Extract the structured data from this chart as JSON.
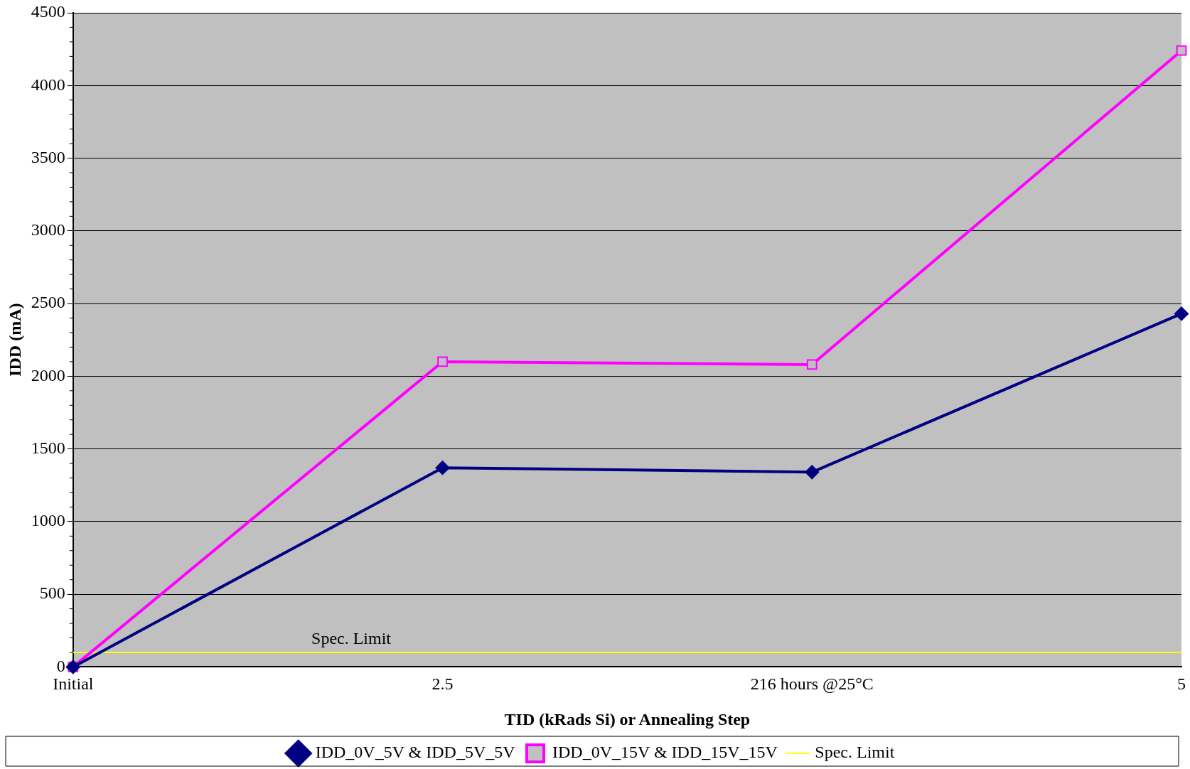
{
  "chart_data": {
    "type": "line",
    "xlabel": "TID (kRads Si) or Annealing Step",
    "ylabel": "IDD (mA)",
    "categories": [
      "Initial",
      "2.5",
      "216 hours @25°C",
      "5"
    ],
    "series": [
      {
        "name": "IDD_0V_5V & IDD_5V_5V",
        "color": "#000080",
        "marker": "diamond",
        "values": [
          0,
          1370,
          1340,
          2430
        ]
      },
      {
        "name": "IDD_0V_15V & IDD_15V_15V",
        "color": "#ff00ff",
        "marker": "square",
        "values": [
          0,
          2100,
          2080,
          4240
        ]
      },
      {
        "name": "Spec. Limit",
        "color": "#ffff00",
        "marker": "none",
        "values": [
          100,
          100,
          100,
          100
        ]
      }
    ],
    "annotations": [
      {
        "text": "Spec. Limit",
        "y": 100
      }
    ],
    "ylim": [
      0,
      4500
    ],
    "yticks": [
      0,
      500,
      1000,
      1500,
      2000,
      2500,
      3000,
      3500,
      4000,
      4500
    ],
    "grid": "y",
    "legend": "bottom"
  }
}
